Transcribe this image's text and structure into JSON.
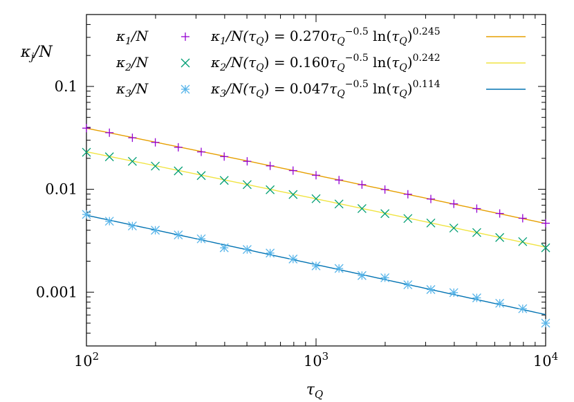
{
  "chart_data": {
    "type": "scatter",
    "xscale": "log",
    "yscale": "log",
    "xlim": [
      100,
      10000
    ],
    "ylim": [
      0.0003,
      0.5
    ],
    "xlabel": "τ_Q",
    "ylabel": "κ_j/N",
    "grid": false,
    "legend_position": "top",
    "x_ticks": [
      {
        "value": 100,
        "label": "10",
        "exp": "2"
      },
      {
        "value": 1000,
        "label": "10",
        "exp": "3"
      },
      {
        "value": 10000,
        "label": "10",
        "exp": "4"
      }
    ],
    "y_ticks": [
      {
        "value": 0.1,
        "label": "0.1"
      },
      {
        "value": 0.01,
        "label": "0.01"
      },
      {
        "value": 0.001,
        "label": "0.001"
      }
    ],
    "x": [
      100,
      125.9,
      158.5,
      199.5,
      251.2,
      316.2,
      398.1,
      501.2,
      631,
      794.3,
      1000,
      1258.9,
      1584.9,
      1995.3,
      2511.9,
      3162.3,
      3981.1,
      5011.9,
      6309.6,
      7943.3,
      10000
    ],
    "series": [
      {
        "name": "κ1/N",
        "marker": "+",
        "color": "#9400d3",
        "values": [
          0.0393,
          0.0355,
          0.0317,
          0.0286,
          0.0256,
          0.0231,
          0.0208,
          0.0187,
          0.0169,
          0.0152,
          0.0137,
          0.0123,
          0.0111,
          0.00995,
          0.00895,
          0.00805,
          0.00722,
          0.00649,
          0.00582,
          0.00523,
          0.00468
        ]
      },
      {
        "name": "κ2/N",
        "marker": "x",
        "color": "#009e73",
        "values": [
          0.0229,
          0.0207,
          0.0187,
          0.0168,
          0.0151,
          0.0136,
          0.0122,
          0.0111,
          0.0099,
          0.0089,
          0.0081,
          0.0072,
          0.0065,
          0.0058,
          0.0052,
          0.0047,
          0.0042,
          0.0038,
          0.0034,
          0.0031,
          0.0027
        ]
      },
      {
        "name": "κ3/N",
        "marker": "*",
        "color": "#56b4e9",
        "values": [
          0.0057,
          0.0049,
          0.0044,
          0.004,
          0.0036,
          0.0033,
          0.0027,
          0.0026,
          0.0024,
          0.0021,
          0.0018,
          0.0017,
          0.00145,
          0.00138,
          0.00118,
          0.00106,
          0.00099,
          0.00088,
          0.00078,
          0.00069,
          0.0005
        ]
      }
    ],
    "fits": [
      {
        "name": "κ1/N(τQ) = 0.270τQ^−0.5 ln(τQ)^0.245",
        "a": 0.27,
        "p": -0.5,
        "q": 0.245,
        "color": "#e69f00"
      },
      {
        "name": "κ2/N(τQ) = 0.160τQ^−0.5 ln(τQ)^0.242",
        "a": 0.16,
        "p": -0.5,
        "q": 0.242,
        "color": "#f0e442"
      },
      {
        "name": "κ3/N(τQ) = 0.047τQ^−0.5 ln(τQ)^0.114",
        "a": 0.047,
        "p": -0.5,
        "q": 0.114,
        "color": "#0072b2"
      }
    ]
  }
}
